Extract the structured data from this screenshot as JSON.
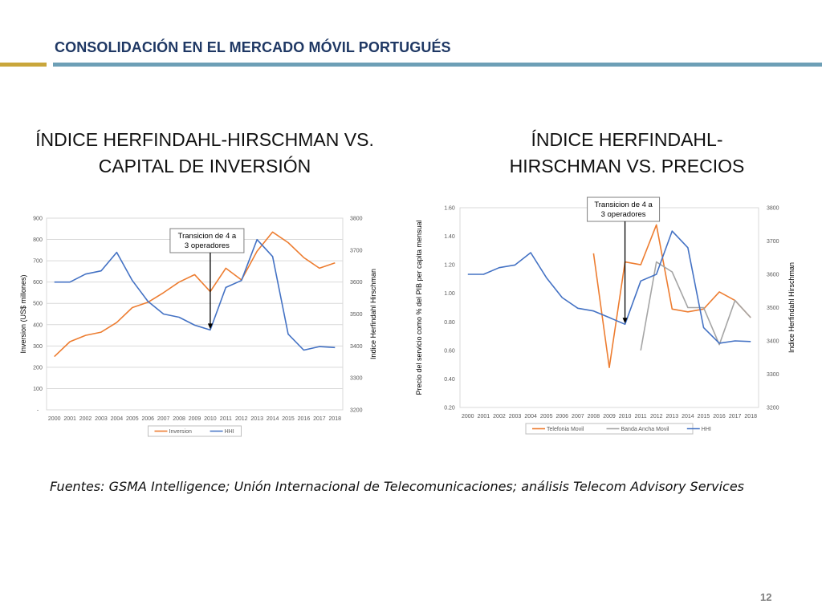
{
  "header": {
    "title": "CONSOLIDACIÓN EN EL MERCADO MÓVIL PORTUGUÉS"
  },
  "colors": {
    "title": "#1f3864",
    "gold_rule": "#c9a63b",
    "blue_rule": "#6d9fb6"
  },
  "sections": {
    "left_title": "ÍNDICE HERFINDAHL-HIRSCHMAN VS. CAPITAL DE INVERSIÓN",
    "right_title": "ÍNDICE HERFINDAHL-HIRSCHMAN VS. PRECIOS"
  },
  "source": "Fuentes: GSMA Intelligence; Unión Internacional de Telecomunicaciones; análisis Telecom Advisory Services",
  "page_number": "12",
  "chart_data": [
    {
      "type": "line",
      "ylabel": "Inversion (US$ millones)",
      "y2label": "Indice Herfindahl Hirschman",
      "x": [
        "2000",
        "2001",
        "2002",
        "2003",
        "2004",
        "2005",
        "2006",
        "2007",
        "2008",
        "2009",
        "2010",
        "2011",
        "2012",
        "2013",
        "2014",
        "2015",
        "2016",
        "2017",
        "2018"
      ],
      "ylim": [
        0,
        900
      ],
      "y_ticks": [
        "-",
        "100",
        "200",
        "300",
        "400",
        "500",
        "600",
        "700",
        "800",
        "900"
      ],
      "y2lim": [
        3200,
        3800
      ],
      "y2_ticks": [
        "3200",
        "3300",
        "3400",
        "3500",
        "3600",
        "3700",
        "3800"
      ],
      "grid": true,
      "legend_position": "bottom",
      "series": [
        {
          "name": "Inversion",
          "axis": "left",
          "color": "#ed7d31",
          "values": [
            250,
            320,
            350,
            365,
            410,
            480,
            505,
            550,
            600,
            635,
            555,
            665,
            610,
            745,
            835,
            785,
            715,
            665,
            690
          ]
        },
        {
          "name": "HHI",
          "axis": "right",
          "color": "#4472c4",
          "values": [
            3600,
            3600,
            3625,
            3635,
            3693,
            3605,
            3540,
            3500,
            3490,
            3465,
            3450,
            3583,
            3605,
            3733,
            3680,
            3437,
            3387,
            3398,
            3395
          ]
        }
      ],
      "annotation": {
        "text": [
          "Transicion de 4 a",
          "3 operadores"
        ],
        "year": "2010"
      }
    },
    {
      "type": "line",
      "ylabel": "Precio del servicio como % del PIB per capita mensual",
      "y2label": "Indice Herfindahl Hirschman",
      "x": [
        "2000",
        "2001",
        "2002",
        "2003",
        "2004",
        "2005",
        "2006",
        "2007",
        "2008",
        "2009",
        "2010",
        "2011",
        "2012",
        "2013",
        "2014",
        "2015",
        "2016",
        "2017",
        "2018"
      ],
      "ylim": [
        0.2,
        1.6
      ],
      "y_ticks": [
        "0.20",
        "0.40",
        "0.60",
        "0.80",
        "1.00",
        "1.20",
        "1.40",
        "1.60"
      ],
      "y2lim": [
        3200,
        3800
      ],
      "y2_ticks": [
        "3200",
        "3300",
        "3400",
        "3500",
        "3600",
        "3700",
        "3800"
      ],
      "grid": false,
      "legend_position": "bottom",
      "series": [
        {
          "name": "Telefonia Movil",
          "axis": "left",
          "color": "#ed7d31",
          "values": [
            null,
            null,
            null,
            null,
            null,
            null,
            null,
            null,
            1.28,
            0.48,
            1.22,
            1.2,
            1.48,
            0.89,
            0.87,
            0.89,
            1.01,
            0.95,
            0.83
          ]
        },
        {
          "name": "Banda Ancha Movil",
          "axis": "left",
          "color": "#a5a5a5",
          "values": [
            null,
            null,
            null,
            null,
            null,
            null,
            null,
            null,
            null,
            null,
            null,
            0.6,
            1.22,
            1.15,
            0.9,
            0.9,
            0.64,
            0.95,
            0.83
          ]
        },
        {
          "name": "HHI",
          "axis": "right",
          "color": "#4472c4",
          "values": [
            3600,
            3600,
            3620,
            3628,
            3665,
            3590,
            3530,
            3498,
            3490,
            3470,
            3450,
            3580,
            3600,
            3730,
            3680,
            3440,
            3393,
            3400,
            3398
          ]
        }
      ],
      "annotation": {
        "text": [
          "Transicion de 4 a",
          "3 operadores"
        ],
        "year": "2010"
      }
    }
  ]
}
